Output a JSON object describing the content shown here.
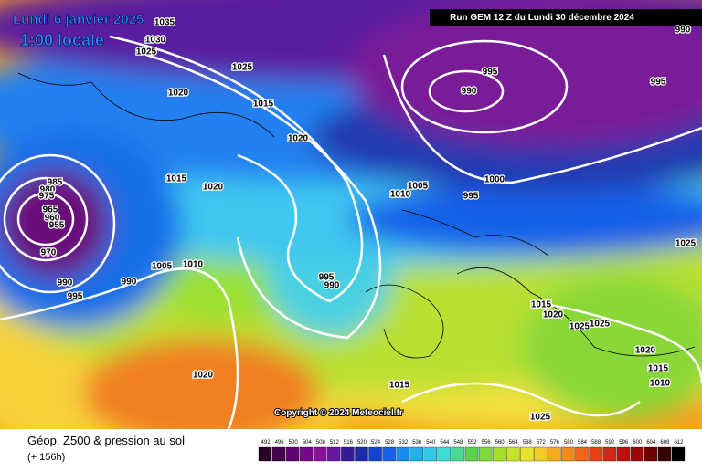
{
  "header": {
    "date": "Lundi 6 janvier 2025",
    "time": "1:00 locale",
    "run": "Run GEM 12 Z du Lundi 30 décembre 2024"
  },
  "map": {
    "copyright": "Copyright © 2024 Meteociel.fr",
    "isobar_labels": [
      "1035",
      "1030",
      "1025",
      "1025",
      "1020",
      "1015",
      "1020",
      "990",
      "995",
      "990",
      "995",
      "1015",
      "1020",
      "985",
      "980",
      "975",
      "965",
      "960",
      "955",
      "970",
      "990",
      "995",
      "990",
      "1005",
      "1010",
      "1000",
      "1005",
      "1010",
      "995",
      "1025",
      "995",
      "990",
      "1015",
      "1020",
      "1025",
      "1025",
      "1020",
      "1015",
      "1010",
      "1015",
      "1020",
      "1025"
    ]
  },
  "footer": {
    "title": "Géop. Z500 & pression au sol",
    "lead": "(+ 156h)"
  },
  "legend": {
    "labels": [
      492,
      496,
      500,
      504,
      508,
      512,
      516,
      520,
      524,
      528,
      532,
      536,
      540,
      544,
      548,
      552,
      556,
      560,
      564,
      568,
      572,
      576,
      580,
      584,
      588,
      592,
      596,
      600,
      604,
      608,
      612
    ]
  }
}
